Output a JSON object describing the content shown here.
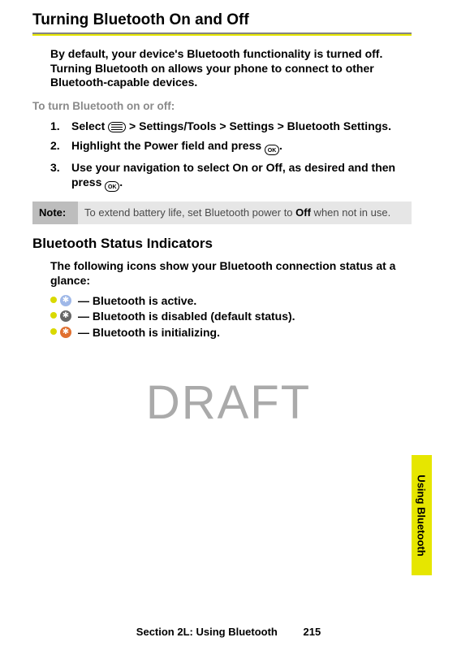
{
  "title": "Turning Bluetooth On and Off",
  "intro": "By default, your device's Bluetooth functionality is turned off. Turning Bluetooth on allows your phone to connect to other Bluetooth-capable devices.",
  "subhead": "To turn Bluetooth on or off:",
  "steps": [
    {
      "num": "1.",
      "parts": [
        "Select ",
        "MENU",
        "  > ",
        "Settings/Tools > Settings > Bluetooth Settings",
        "."
      ]
    },
    {
      "num": "2.",
      "parts": [
        "Highlight the ",
        "Power",
        " field and press ",
        "OK",
        "."
      ]
    },
    {
      "num": "3.",
      "parts": [
        "Use your navigation to select ",
        "On",
        " or ",
        "Off",
        ", as desired and then press ",
        "OK",
        "."
      ]
    }
  ],
  "note": {
    "label": "Note:",
    "text_before": "To extend battery life, set Bluetooth power to ",
    "bold": "Off",
    "text_after": " when not in use."
  },
  "h2": "Bluetooth Status Indicators",
  "status_intro": "The following icons show your Bluetooth connection status at a glance:",
  "status_items": [
    {
      "bullet_color": "#d9d900",
      "icon_bg": "#9fb8e8",
      "glyph": "✱",
      "text": " — Bluetooth is active."
    },
    {
      "bullet_color": "#d9d900",
      "icon_bg": "#666666",
      "glyph": "✱",
      "text": " — Bluetooth is disabled (default status)."
    },
    {
      "bullet_color": "#d9d900",
      "icon_bg": "#e07030",
      "glyph": "✱",
      "text": " — Bluetooth is initializing."
    }
  ],
  "watermark": "DRAFT",
  "side_tab": "Using Bluetooth",
  "footer_section": "Section 2L: Using Bluetooth",
  "footer_page": "215"
}
